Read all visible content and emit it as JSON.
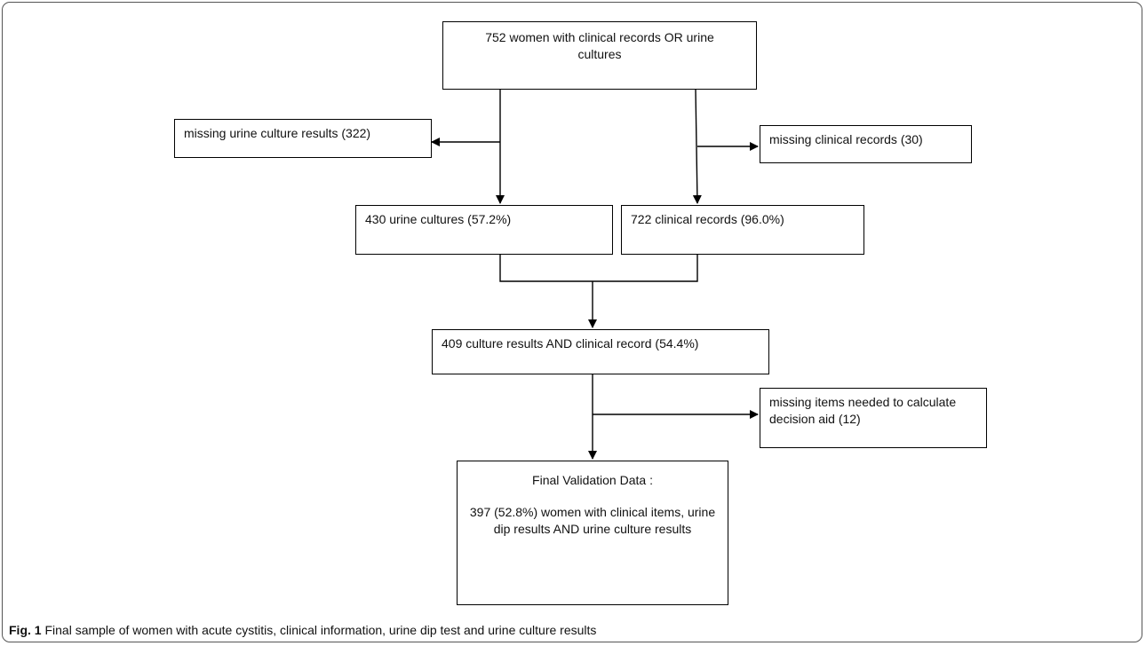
{
  "nodes": {
    "start": "752 women with clinical records OR urine cultures",
    "missing_culture": "missing urine culture results (322)",
    "missing_clinical": "missing clinical records (30)",
    "urine_cultures": "430 urine cultures (57.2%)",
    "clinical_records": "722 clinical records (96.0%)",
    "combined": "409 culture results AND clinical record (54.4%)",
    "missing_items": "missing items needed to calculate decision aid (12)",
    "final_title": "Final Validation Data :",
    "final_body": "397 (52.8%) women with clinical items, urine dip results AND urine culture results"
  },
  "caption": {
    "label": "Fig. 1",
    "text": "Final sample of women with acute cystitis, clinical information, urine dip test and urine culture results"
  }
}
